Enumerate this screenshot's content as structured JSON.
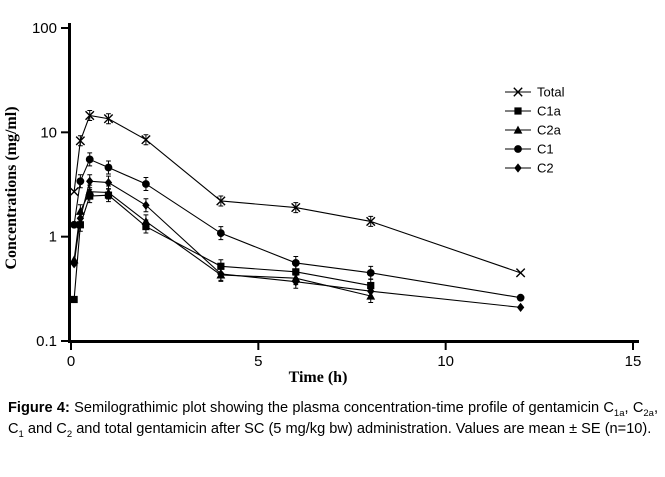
{
  "figure": {
    "background": "#ffffff",
    "line_color": "#000000",
    "axis_color": "#000000",
    "text_color": "#000000"
  },
  "chart_data": {
    "type": "line",
    "title": "",
    "xlabel": "Time (h)",
    "ylabel": "Concentrations (mg/ml)",
    "x_scale": "linear",
    "y_scale": "log",
    "xlim": [
      0,
      15
    ],
    "ylim": [
      0.1,
      100
    ],
    "x_ticks": [
      0,
      5,
      10,
      15
    ],
    "y_ticks": [
      100,
      10,
      1,
      0.1
    ],
    "grid": false,
    "legend_position": "inside-upper-right",
    "error_bars": "mean ± SE shown as small vertical bars",
    "x": [
      0.083,
      0.25,
      0.5,
      1,
      2,
      4,
      6,
      8,
      12
    ],
    "series": [
      {
        "name": "Total",
        "marker": "cross",
        "values": [
          2.7,
          8.3,
          14.5,
          13.5,
          8.5,
          2.2,
          1.9,
          1.4,
          0.45
        ]
      },
      {
        "name": "C1a",
        "marker": "square",
        "values": [
          0.25,
          1.3,
          2.45,
          2.5,
          1.25,
          0.52,
          0.46,
          0.34,
          null
        ]
      },
      {
        "name": "C2a",
        "marker": "triangle",
        "values": [
          0.6,
          1.75,
          2.7,
          2.65,
          1.4,
          0.43,
          0.4,
          0.27,
          null
        ]
      },
      {
        "name": "C1",
        "marker": "circle",
        "values": [
          1.3,
          3.4,
          5.5,
          4.6,
          3.2,
          1.08,
          0.56,
          0.45,
          0.26
        ]
      },
      {
        "name": "C2",
        "marker": "diamond",
        "values": [
          0.55,
          1.5,
          3.4,
          3.3,
          2.0,
          0.44,
          0.37,
          0.3,
          0.21
        ]
      }
    ]
  },
  "caption": {
    "segments": [
      {
        "text": "Figure 4:",
        "bold": true
      },
      {
        "text": " Semilograthimic plot showing the plasma concentration-time profile of gentamicin C"
      },
      {
        "text": "1a",
        "sub": true
      },
      {
        "text": ", C"
      },
      {
        "text": "2a",
        "sub": true
      },
      {
        "text": ", C"
      },
      {
        "text": "1",
        "sub": true
      },
      {
        "text": " and C"
      },
      {
        "text": "2",
        "sub": true
      },
      {
        "text": " and total gentamicin after SC (5 mg/kg bw) administration. Values are mean ± SE (n=10)."
      }
    ]
  }
}
